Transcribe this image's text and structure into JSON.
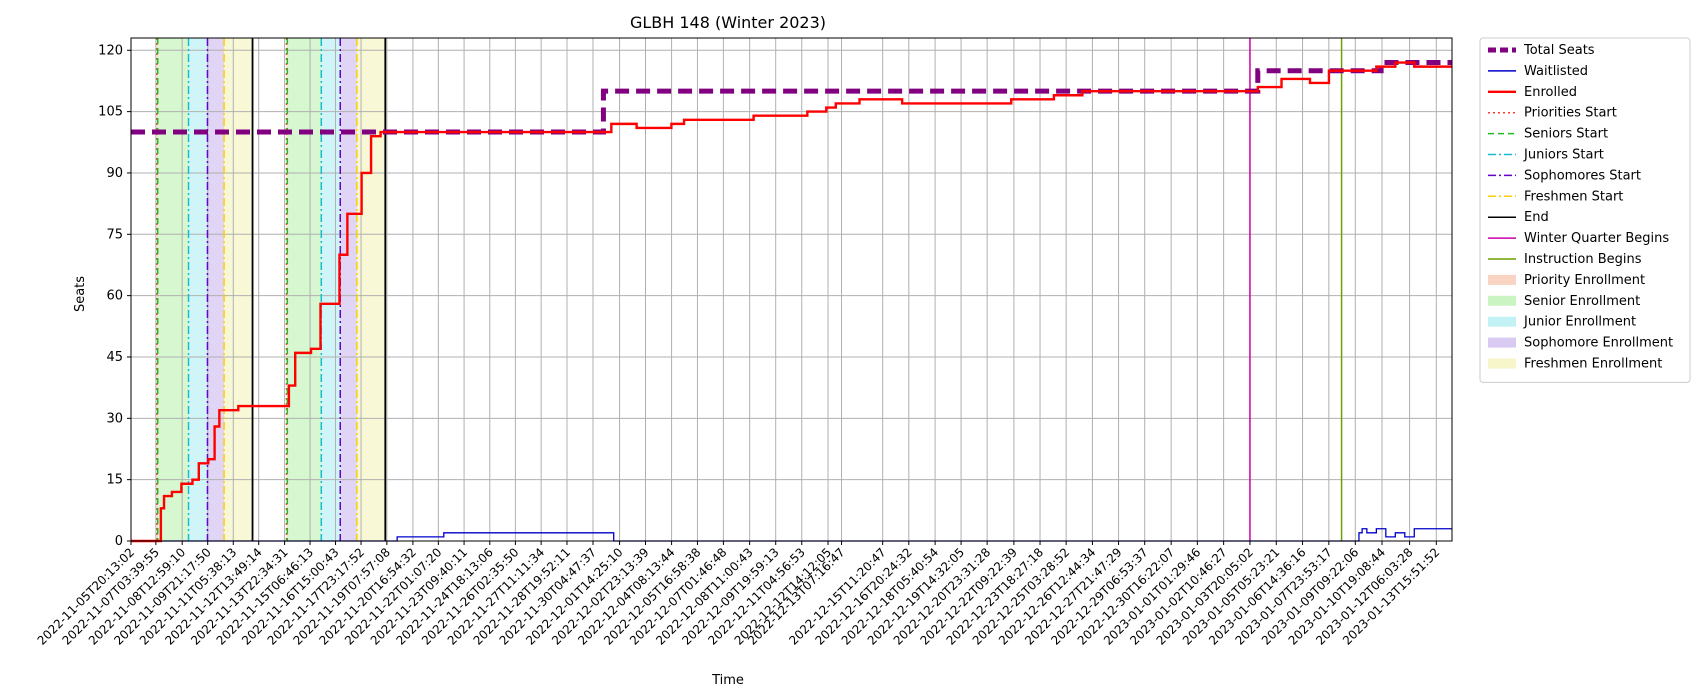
{
  "chart_data": {
    "type": "line",
    "title": "GLBH 148 (Winter 2023)",
    "xlabel": "Time",
    "ylabel": "Seats",
    "ylim": [
      0,
      123
    ],
    "yticks": [
      0,
      15,
      30,
      45,
      60,
      75,
      90,
      105,
      120
    ],
    "xlim": [
      "2022-11-05T20:13:02",
      "2023-01-14T11:44:00"
    ],
    "x_tick_labels": [
      "2022-11-05T20:13:02",
      "2022-11-07T03:39:55",
      "2022-11-08T12:59:10",
      "2022-11-09T21:17:50",
      "2022-11-11T05:38:13",
      "2022-11-12T13:49:14",
      "2022-11-13T22:34:31",
      "2022-11-15T06:46:13",
      "2022-11-16T15:00:43",
      "2022-11-17T23:17:52",
      "2022-11-19T07:57:08",
      "2022-11-20T16:54:32",
      "2022-11-22T01:07:20",
      "2022-11-23T09:40:11",
      "2022-11-24T18:13:06",
      "2022-11-26T02:35:50",
      "2022-11-27T11:11:34",
      "2022-11-28T19:52:11",
      "2022-11-30T04:47:37",
      "2022-12-01T14:25:10",
      "2022-12-02T23:13:39",
      "2022-12-04T08:13:44",
      "2022-12-05T16:58:38",
      "2022-12-07T01:46:48",
      "2022-12-08T11:00:43",
      "2022-12-09T19:59:13",
      "2022-12-11T04:56:53",
      "2022-12-12T14:12:05",
      "2022-12-13T07:16:47",
      "2022-12-15T11:20:47",
      "2022-12-16T20:24:32",
      "2022-12-18T05:40:54",
      "2022-12-19T14:32:05",
      "2022-12-20T23:31:28",
      "2022-12-22T09:22:39",
      "2022-12-23T18:27:18",
      "2022-12-25T03:28:52",
      "2022-12-26T12:44:34",
      "2022-12-27T21:47:29",
      "2022-12-29T06:53:37",
      "2022-12-30T16:22:07",
      "2023-01-01T01:29:46",
      "2023-01-02T10:46:27",
      "2023-01-03T20:05:02",
      "2023-01-05T05:23:21",
      "2023-01-06T14:36:16",
      "2023-01-07T23:53:17",
      "2023-01-09T09:22:06",
      "2023-01-10T19:08:44",
      "2023-01-12T06:03:28",
      "2023-01-13T15:51:52"
    ],
    "series": [
      {
        "name": "Total Seats",
        "color": "#800080",
        "style": "dashed",
        "points": [
          [
            "2022-11-05T20:13:02",
            100
          ],
          [
            "2022-11-30T18:00:00",
            100
          ],
          [
            "2022-11-30T18:00:00",
            110
          ],
          [
            "2023-01-04T06:00:00",
            110
          ],
          [
            "2023-01-04T06:00:00",
            115
          ],
          [
            "2023-01-10T18:00:00",
            115
          ],
          [
            "2023-01-10T18:00:00",
            117
          ],
          [
            "2023-01-14T11:44:00",
            117
          ]
        ]
      },
      {
        "name": "Waitlisted",
        "color": "#0000cc",
        "style": "solid",
        "points": [
          [
            "2022-11-05T20:13:02",
            0
          ],
          [
            "2022-11-19T21:00:00",
            0
          ],
          [
            "2022-11-19T21:00:00",
            1
          ],
          [
            "2022-11-22T08:00:00",
            1
          ],
          [
            "2022-11-22T08:00:00",
            2
          ],
          [
            "2022-12-01T07:00:00",
            2
          ],
          [
            "2022-12-01T07:00:00",
            0
          ],
          [
            "2023-01-09T14:00:00",
            0
          ],
          [
            "2023-01-09T14:00:00",
            2
          ],
          [
            "2023-01-09T18:00:00",
            3
          ],
          [
            "2023-01-10T00:00:00",
            2
          ],
          [
            "2023-01-10T12:00:00",
            3
          ],
          [
            "2023-01-11T00:00:00",
            1
          ],
          [
            "2023-01-11T12:00:00",
            2
          ],
          [
            "2023-01-12T00:00:00",
            1
          ],
          [
            "2023-01-12T12:00:00",
            3
          ],
          [
            "2023-01-14T11:44:00",
            3
          ]
        ]
      },
      {
        "name": "Enrolled",
        "color": "#ff0000",
        "style": "solid",
        "points": [
          [
            "2022-11-05T20:13:02",
            0
          ],
          [
            "2022-11-07T06:00:00",
            0
          ],
          [
            "2022-11-07T10:00:00",
            8
          ],
          [
            "2022-11-07T14:00:00",
            11
          ],
          [
            "2022-11-08T00:00:00",
            12
          ],
          [
            "2022-11-08T12:00:00",
            14
          ],
          [
            "2022-11-09T02:00:00",
            15
          ],
          [
            "2022-11-09T10:00:00",
            19
          ],
          [
            "2022-11-09T22:00:00",
            20
          ],
          [
            "2022-11-10T06:00:00",
            28
          ],
          [
            "2022-11-10T12:00:00",
            32
          ],
          [
            "2022-11-11T06:00:00",
            32
          ],
          [
            "2022-11-11T12:00:00",
            33
          ],
          [
            "2022-11-13T20:00:00",
            33
          ],
          [
            "2022-11-14T04:00:00",
            38
          ],
          [
            "2022-11-14T12:00:00",
            46
          ],
          [
            "2022-11-15T08:00:00",
            47
          ],
          [
            "2022-11-15T20:00:00",
            58
          ],
          [
            "2022-11-16T12:00:00",
            58
          ],
          [
            "2022-11-16T20:00:00",
            70
          ],
          [
            "2022-11-17T06:00:00",
            80
          ],
          [
            "2022-11-17T16:00:00",
            80
          ],
          [
            "2022-11-18T00:00:00",
            90
          ],
          [
            "2022-11-18T12:00:00",
            99
          ],
          [
            "2022-11-19T00:00:00",
            100
          ],
          [
            "2022-11-30T18:00:00",
            100
          ],
          [
            "2022-12-01T04:00:00",
            102
          ],
          [
            "2022-12-02T12:00:00",
            101
          ],
          [
            "2022-12-04T08:00:00",
            102
          ],
          [
            "2022-12-05T00:00:00",
            103
          ],
          [
            "2022-12-06T12:00:00",
            103
          ],
          [
            "2022-12-08T16:00:00",
            104
          ],
          [
            "2022-12-11T12:00:00",
            105
          ],
          [
            "2022-12-12T12:00:00",
            106
          ],
          [
            "2022-12-13T00:00:00",
            107
          ],
          [
            "2022-12-14T06:00:00",
            108
          ],
          [
            "2022-12-16T12:00:00",
            107
          ],
          [
            "2022-12-20T00:00:00",
            107
          ],
          [
            "2022-12-22T06:00:00",
            108
          ],
          [
            "2022-12-22T18:00:00",
            108
          ],
          [
            "2022-12-24T12:00:00",
            109
          ],
          [
            "2022-12-26T00:00:00",
            110
          ],
          [
            "2022-12-30T12:00:00",
            110
          ],
          [
            "2023-01-01T00:00:00",
            110
          ],
          [
            "2023-01-03T00:00:00",
            110
          ],
          [
            "2023-01-04T06:00:00",
            111
          ],
          [
            "2023-01-05T12:00:00",
            113
          ],
          [
            "2023-01-07T00:00:00",
            112
          ],
          [
            "2023-01-08T00:00:00",
            115
          ],
          [
            "2023-01-09T12:00:00",
            115
          ],
          [
            "2023-01-10T12:00:00",
            116
          ],
          [
            "2023-01-11T12:00:00",
            117
          ],
          [
            "2023-01-12T12:00:00",
            116
          ],
          [
            "2023-01-14T11:44:00",
            116
          ]
        ]
      }
    ],
    "vlines": [
      {
        "name": "Priorities Start",
        "color": "#ff3b30",
        "style": "dotted",
        "at": [
          "2022-11-07T05:00:00",
          "2022-11-14T01:00:00"
        ]
      },
      {
        "name": "Seniors Start",
        "color": "#22bb22",
        "style": "dashed",
        "at": [
          "2022-11-07T06:00:00",
          "2022-11-14T02:00:00"
        ]
      },
      {
        "name": "Juniors Start",
        "color": "#17becf",
        "style": "dashdot",
        "at": [
          "2022-11-08T21:00:00",
          "2022-11-15T21:00:00"
        ]
      },
      {
        "name": "Sophomores Start",
        "color": "#6600cc",
        "style": "dashdot",
        "at": [
          "2022-11-09T21:00:00",
          "2022-11-16T21:00:00"
        ]
      },
      {
        "name": "Freshmen Start",
        "color": "#ffcc00",
        "style": "dashdot",
        "at": [
          "2022-11-10T18:00:00",
          "2022-11-17T18:00:00"
        ]
      },
      {
        "name": "End",
        "color": "#000000",
        "style": "solid",
        "at": [
          "2022-11-12T06:00:00",
          "2022-11-19T06:00:00"
        ]
      },
      {
        "name": "Winter Quarter Begins",
        "color": "#cc00aa",
        "style": "solid",
        "at": [
          "2023-01-03T20:05:02"
        ]
      },
      {
        "name": "Instruction Begins",
        "color": "#6b9e00",
        "style": "solid",
        "at": [
          "2023-01-08T16:00:00"
        ]
      }
    ],
    "spans": [
      {
        "name": "Priority Enrollment",
        "color": "#f7c2a8",
        "ranges": [
          [
            "2022-11-07T05:00:00",
            "2022-11-07T06:00:00"
          ],
          [
            "2022-11-14T01:00:00",
            "2022-11-14T02:00:00"
          ]
        ]
      },
      {
        "name": "Senior Enrollment",
        "color": "#b5f0aa",
        "ranges": [
          [
            "2022-11-07T06:00:00",
            "2022-11-08T21:00:00"
          ],
          [
            "2022-11-14T02:00:00",
            "2022-11-15T21:00:00"
          ]
        ]
      },
      {
        "name": "Junior Enrollment",
        "color": "#a9ecf2",
        "ranges": [
          [
            "2022-11-08T21:00:00",
            "2022-11-09T21:00:00"
          ],
          [
            "2022-11-15T21:00:00",
            "2022-11-16T21:00:00"
          ]
        ]
      },
      {
        "name": "Sophomore Enrollment",
        "color": "#c9b3ec",
        "ranges": [
          [
            "2022-11-09T21:00:00",
            "2022-11-10T18:00:00"
          ],
          [
            "2022-11-16T21:00:00",
            "2022-11-17T18:00:00"
          ]
        ]
      },
      {
        "name": "Freshmen Enrollment",
        "color": "#f2f2b4",
        "ranges": [
          [
            "2022-11-10T18:00:00",
            "2022-11-12T06:00:00"
          ],
          [
            "2022-11-17T18:00:00",
            "2022-11-19T06:00:00"
          ]
        ]
      }
    ],
    "legend": {
      "placement": "outside-right",
      "entries": [
        {
          "label": "Total Seats",
          "kind": "line",
          "color": "#800080",
          "style": "dashed"
        },
        {
          "label": "Waitlisted",
          "kind": "line",
          "color": "#0000cc",
          "style": "solid"
        },
        {
          "label": "Enrolled",
          "kind": "line",
          "color": "#ff0000",
          "style": "solid"
        },
        {
          "label": "Priorities Start",
          "kind": "line",
          "color": "#ff3b30",
          "style": "dotted"
        },
        {
          "label": "Seniors Start",
          "kind": "line",
          "color": "#22bb22",
          "style": "dashed"
        },
        {
          "label": "Juniors Start",
          "kind": "line",
          "color": "#17becf",
          "style": "dashdot"
        },
        {
          "label": "Sophomores Start",
          "kind": "line",
          "color": "#6600cc",
          "style": "dashdot"
        },
        {
          "label": "Freshmen Start",
          "kind": "line",
          "color": "#ffcc00",
          "style": "dashdot"
        },
        {
          "label": "End",
          "kind": "line",
          "color": "#000000",
          "style": "solid"
        },
        {
          "label": "Winter Quarter Begins",
          "kind": "line",
          "color": "#cc00aa",
          "style": "solid"
        },
        {
          "label": "Instruction Begins",
          "kind": "line",
          "color": "#6b9e00",
          "style": "solid"
        },
        {
          "label": "Priority Enrollment",
          "kind": "patch",
          "color": "#f7c2a8"
        },
        {
          "label": "Senior Enrollment",
          "kind": "patch",
          "color": "#b5f0aa"
        },
        {
          "label": "Junior Enrollment",
          "kind": "patch",
          "color": "#a9ecf2"
        },
        {
          "label": "Sophomore Enrollment",
          "kind": "patch",
          "color": "#c9b3ec"
        },
        {
          "label": "Freshmen Enrollment",
          "kind": "patch",
          "color": "#f2f2b4"
        }
      ]
    },
    "grid": true
  }
}
